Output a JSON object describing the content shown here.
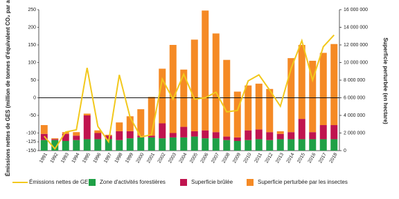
{
  "chart_data": {
    "type": "bar",
    "categories": [
      "1991",
      "1992",
      "1993",
      "1994",
      "1995",
      "1996",
      "1997",
      "1998",
      "1999",
      "2000",
      "2001",
      "2002",
      "2003",
      "2004",
      "2005",
      "2006",
      "2007",
      "2008",
      "2009",
      "2010",
      "2011",
      "2012",
      "2013",
      "2014",
      "2015",
      "2016",
      "2017",
      "2018"
    ],
    "y_label": "Émissions nettes de GES (million de tonnes d'équivalent CO₂ par année)",
    "y2_label": "Superficie perturbée (en hectare)",
    "ylim": [
      -150,
      250
    ],
    "yticks": [
      -150,
      -125,
      -100,
      -50,
      0,
      50,
      100,
      150,
      200,
      250
    ],
    "y2lim": [
      0,
      16000000
    ],
    "y2ticks": [
      0,
      {
        "value": 2000000,
        "label": "2 000 000"
      },
      {
        "value": 4000000,
        "label": "4 000 000"
      },
      {
        "value": 6000000,
        "label": "6 000 000"
      },
      {
        "value": 8000000,
        "label": "8 000 000"
      },
      {
        "value": 10000000,
        "label": "10 000 000"
      },
      {
        "value": 12000000,
        "label": "12 000 000"
      },
      {
        "value": 14000000,
        "label": "14 000 000"
      },
      {
        "value": 16000000,
        "label": "16 000 000"
      }
    ],
    "series": [
      {
        "name": "Émissions nettes de GES",
        "type": "line",
        "color": "#f2c81c",
        "values": [
          -109,
          -145,
          -97,
          -91,
          85,
          -81,
          -125,
          65,
          -55,
          -111,
          -105,
          53,
          -4,
          67,
          -4,
          0,
          16,
          -40,
          -36,
          48,
          65,
          22,
          -24,
          83,
          162,
          50,
          145,
          178
        ]
      },
      {
        "name": "Zone d'activités forestières",
        "type": "bar",
        "axis": "y2",
        "color": "#1fa046",
        "values": [
          1200000,
          1200000,
          1100000,
          1200000,
          1300000,
          1300000,
          1300000,
          1200000,
          1400000,
          1500000,
          1500000,
          1400000,
          1500000,
          1500000,
          1600000,
          1400000,
          1400000,
          1200000,
          1100000,
          1200000,
          1300000,
          1200000,
          1300000,
          1300000,
          1300000,
          1300000,
          1300000,
          1300000
        ]
      },
      {
        "name": "Superficie brûlée",
        "type": "bar",
        "axis": "y2",
        "color": "#c0144f",
        "values": [
          700000,
          100000,
          800000,
          500000,
          2700000,
          700000,
          400000,
          1000000,
          800000,
          200000,
          200000,
          1700000,
          500000,
          1200000,
          600000,
          900000,
          700000,
          400000,
          400000,
          1100000,
          1100000,
          900000,
          600000,
          800000,
          2300000,
          800000,
          1600000,
          1600000
        ]
      },
      {
        "name": "Superficie perturbée par les insectes",
        "type": "bar",
        "axis": "y2",
        "color": "#f58a25",
        "values": [
          1000000,
          100000,
          200000,
          400000,
          200000,
          300000,
          100000,
          1000000,
          1700000,
          3000000,
          4400000,
          6200000,
          10000000,
          6500000,
          10400000,
          13600000,
          11200000,
          8700000,
          5200000,
          5100000,
          5200000,
          4900000,
          300000,
          8400000,
          8400000,
          8100000,
          8200000,
          9200000
        ]
      }
    ]
  }
}
